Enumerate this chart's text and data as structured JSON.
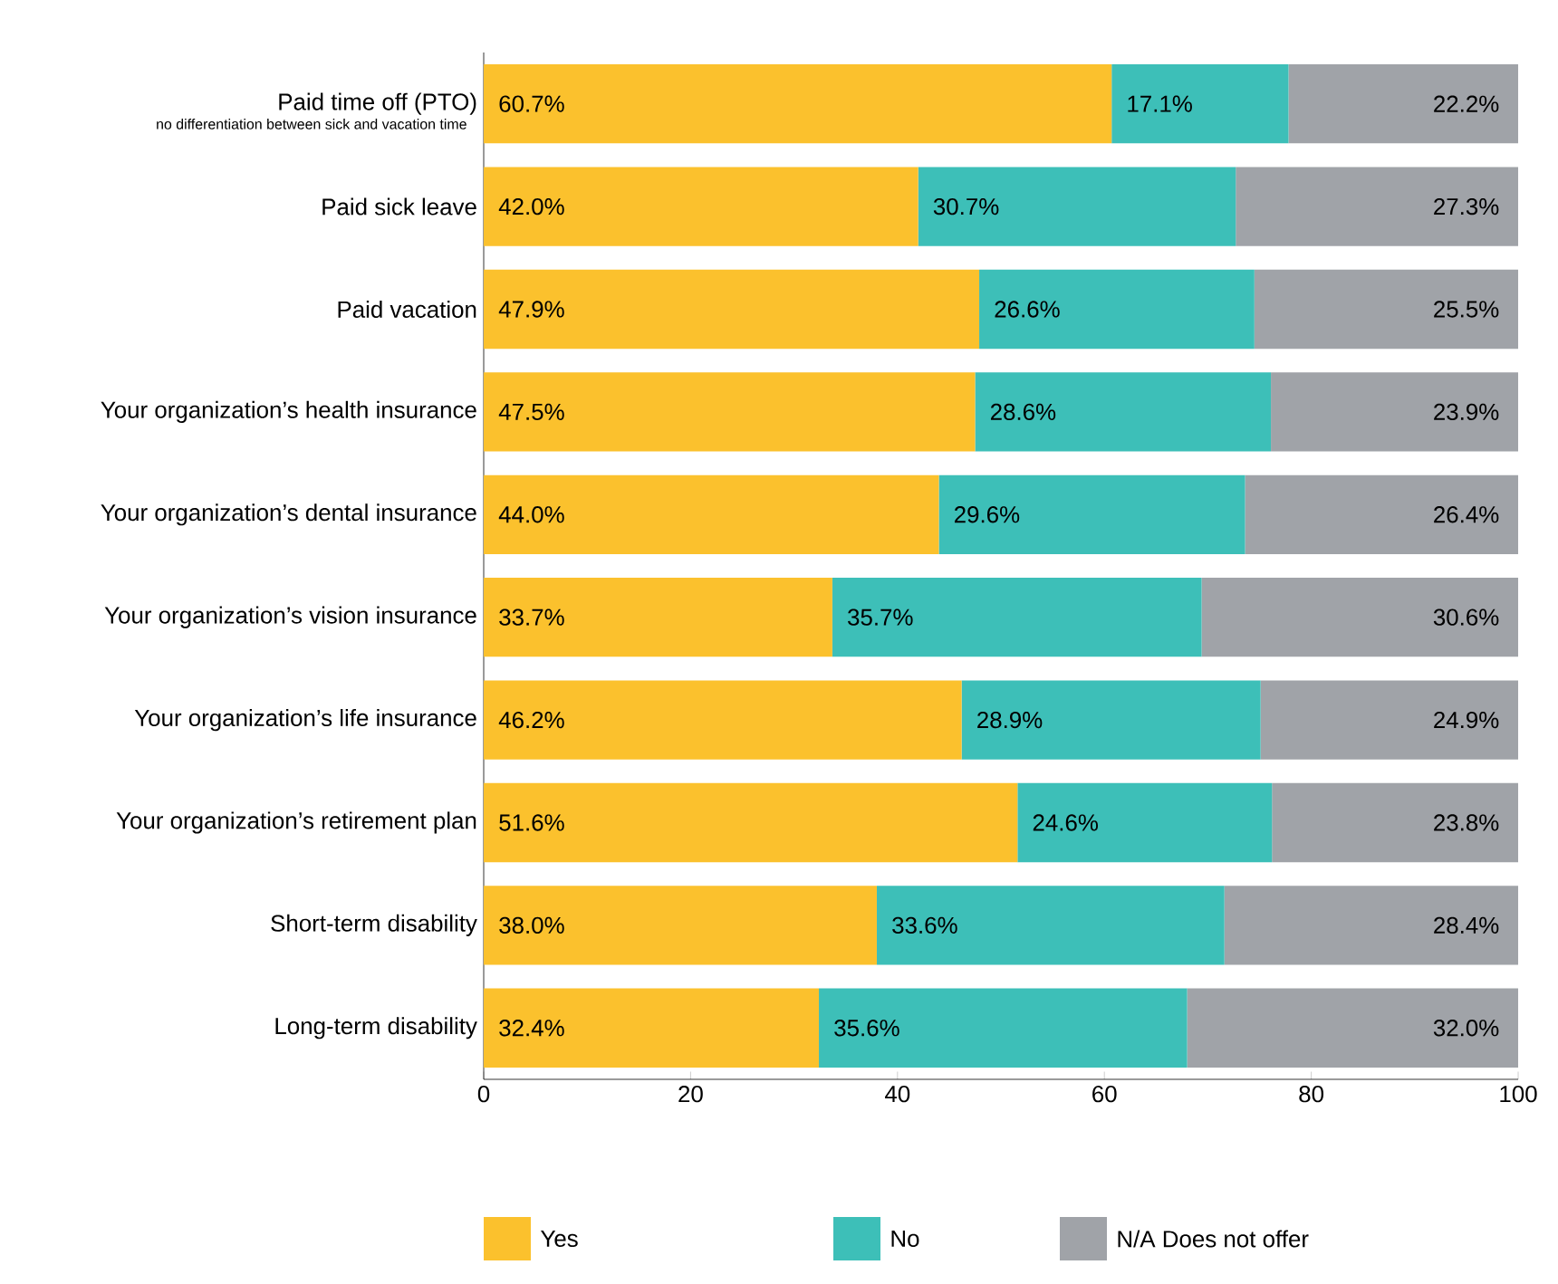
{
  "chart_data": {
    "type": "bar",
    "orientation": "horizontal",
    "stacked": true,
    "categories": [
      "Paid time off (PTO)",
      "Paid sick leave",
      "Paid vacation",
      "Your organization’s health insurance",
      "Your organization’s dental insurance",
      "Your organization’s vision insurance",
      "Your organization’s life insurance",
      "Your organization’s retirement plan",
      "Short-term disability",
      "Long-term disability"
    ],
    "annotations": [
      "no differentiation between sick and vacation time"
    ],
    "series": [
      {
        "name": "Yes",
        "color": "#fbc12d",
        "values": [
          60.7,
          42.0,
          47.9,
          47.5,
          44.0,
          33.7,
          46.2,
          51.6,
          38.0,
          32.4
        ],
        "value_labels": [
          "60.7%",
          "42.0%",
          "47.9%",
          "47.5%",
          "44.0%",
          "33.7%",
          "46.2%",
          "51.6%",
          "38.0%",
          "32.4%"
        ]
      },
      {
        "name": "No",
        "color": "#3dbfb8",
        "values": [
          17.1,
          30.7,
          26.6,
          28.6,
          29.6,
          35.7,
          28.9,
          24.6,
          33.6,
          35.6
        ],
        "value_labels": [
          "17.1%",
          "30.7%",
          "26.6%",
          "28.6%",
          "29.6%",
          "35.7%",
          "28.9%",
          "24.6%",
          "33.6%",
          "35.6%"
        ]
      },
      {
        "name": "N/A Does not offer",
        "color": "#a0a3a8",
        "values": [
          22.2,
          27.3,
          25.5,
          23.9,
          26.4,
          30.6,
          24.9,
          23.8,
          28.4,
          32.0
        ],
        "value_labels": [
          "22.2%",
          "27.3%",
          "25.5%",
          "23.9%",
          "26.4%",
          "30.6%",
          "24.9%",
          "23.8%",
          "28.4%",
          "32.0%"
        ]
      }
    ],
    "xlim": [
      0,
      100
    ],
    "xticks": [
      0,
      20,
      40,
      60,
      80,
      100
    ],
    "legend": "bottom"
  }
}
